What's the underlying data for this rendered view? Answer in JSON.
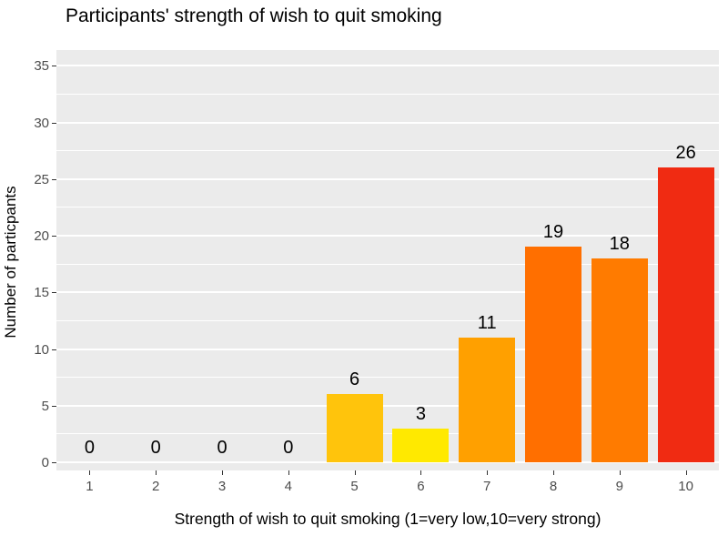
{
  "chart_data": {
    "type": "bar",
    "title": "Participants' strength of wish to quit smoking",
    "xlabel": "Strength of wish to quit smoking (1=very low,10=very strong)",
    "ylabel": "Number of particpants",
    "categories": [
      "1",
      "2",
      "3",
      "4",
      "5",
      "6",
      "7",
      "8",
      "9",
      "10"
    ],
    "values": [
      0,
      0,
      0,
      0,
      6,
      3,
      11,
      19,
      18,
      26
    ],
    "bar_colors": [
      "#FFEE00",
      "#FFEE00",
      "#FFEE00",
      "#FFEE00",
      "#FFC40C",
      "#FFE900",
      "#FFA000",
      "#FF6F00",
      "#FF7B00",
      "#F02B12"
    ],
    "y_ticks": [
      0,
      5,
      10,
      15,
      20,
      25,
      30,
      35
    ],
    "y_minor_ticks": [
      2.5,
      7.5,
      12.5,
      17.5,
      22.5,
      27.5,
      32.5
    ],
    "ylim": [
      0,
      36.5
    ],
    "grid": true,
    "legend_position": "none",
    "panel_background": "#EBEBEB",
    "gridline_color": "#ffffff"
  }
}
